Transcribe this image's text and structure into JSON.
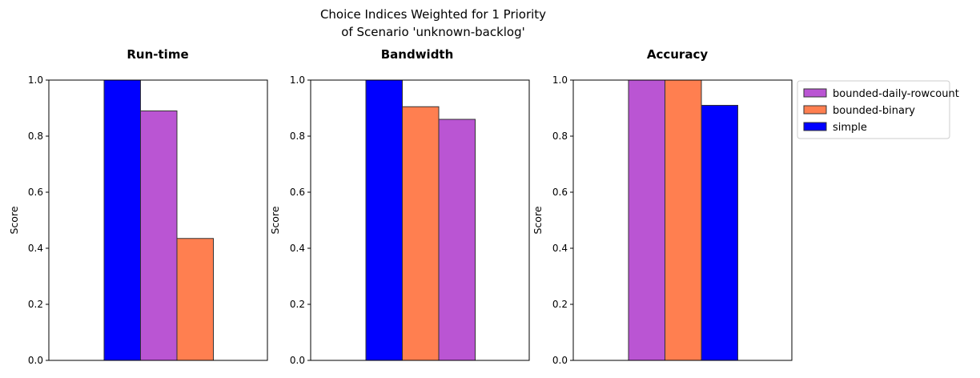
{
  "figure": {
    "title_line1": "Choice Indices Weighted for 1 Priority",
    "title_line2": "of Scenario 'unknown-backlog'"
  },
  "legend": {
    "placement": "upper-right-outside",
    "entries": [
      {
        "name": "bounded-daily-rowcount",
        "color": "#BA55D3"
      },
      {
        "name": "bounded-binary",
        "color": "#FF7F50"
      },
      {
        "name": "simple",
        "color": "#0000FF"
      }
    ]
  },
  "chart_data": [
    {
      "type": "bar",
      "title": "Run-time",
      "xlabel": "",
      "ylabel": "Score",
      "ylim": [
        0,
        1
      ],
      "yticks": [
        "0.0",
        "0.2",
        "0.4",
        "0.6",
        "0.8",
        "1.0"
      ],
      "grid": false,
      "bars": [
        {
          "series": "simple",
          "value": 1.0,
          "color": "#0000FF"
        },
        {
          "series": "bounded-daily-rowcount",
          "value": 0.89,
          "color": "#BA55D3"
        },
        {
          "series": "bounded-binary",
          "value": 0.435,
          "color": "#FF7F50"
        }
      ]
    },
    {
      "type": "bar",
      "title": "Bandwidth",
      "xlabel": "",
      "ylabel": "Score",
      "ylim": [
        0,
        1
      ],
      "yticks": [
        "0.0",
        "0.2",
        "0.4",
        "0.6",
        "0.8",
        "1.0"
      ],
      "grid": false,
      "bars": [
        {
          "series": "simple",
          "value": 1.0,
          "color": "#0000FF"
        },
        {
          "series": "bounded-binary",
          "value": 0.905,
          "color": "#FF7F50"
        },
        {
          "series": "bounded-daily-rowcount",
          "value": 0.86,
          "color": "#BA55D3"
        }
      ]
    },
    {
      "type": "bar",
      "title": "Accuracy",
      "xlabel": "",
      "ylabel": "Score",
      "ylim": [
        0,
        1
      ],
      "yticks": [
        "0.0",
        "0.2",
        "0.4",
        "0.6",
        "0.8",
        "1.0"
      ],
      "grid": false,
      "bars": [
        {
          "series": "bounded-daily-rowcount",
          "value": 1.0,
          "color": "#BA55D3"
        },
        {
          "series": "bounded-binary",
          "value": 1.0,
          "color": "#FF7F50"
        },
        {
          "series": "simple",
          "value": 0.91,
          "color": "#0000FF"
        }
      ]
    }
  ]
}
